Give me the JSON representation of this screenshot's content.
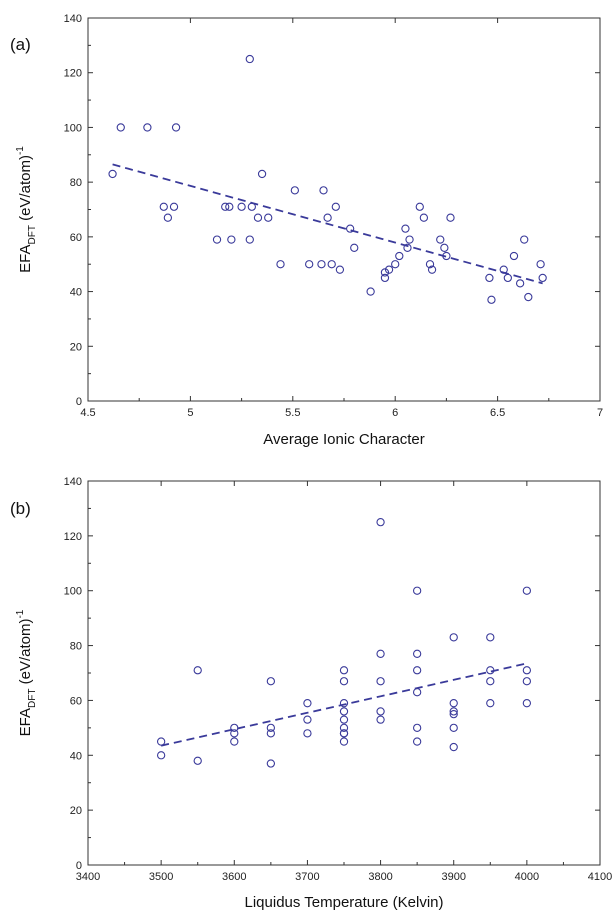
{
  "chart_data": [
    {
      "type": "scatter",
      "panel_label": "(a)",
      "xlabel": "Average Ionic Character",
      "ylabel_main": "EFA",
      "ylabel_sub": "DFT",
      "ylabel_unit": " (eV/atom)",
      "ylabel_sup": "-1",
      "xlim": [
        4.5,
        7
      ],
      "ylim": [
        0,
        140
      ],
      "xtick_labels": [
        "4.5",
        "5",
        "5.5",
        "6",
        "6.5",
        "7"
      ],
      "ytick_labels": [
        "0",
        "20",
        "40",
        "60",
        "80",
        "100",
        "120",
        "140"
      ],
      "series": [
        {
          "marker": "open-circle",
          "color": "#3a3a9a",
          "x": [
            4.62,
            4.66,
            4.79,
            4.87,
            4.89,
            4.92,
            4.93,
            5.13,
            5.17,
            5.19,
            5.2,
            5.25,
            5.29,
            5.29,
            5.3,
            5.33,
            5.35,
            5.38,
            5.44,
            5.51,
            5.58,
            5.64,
            5.65,
            5.67,
            5.69,
            5.71,
            5.73,
            5.78,
            5.8,
            5.88,
            5.95,
            5.95,
            5.97,
            6.0,
            6.02,
            6.05,
            6.06,
            6.07,
            6.12,
            6.14,
            6.17,
            6.18,
            6.22,
            6.24,
            6.25,
            6.27,
            6.46,
            6.47,
            6.53,
            6.55,
            6.58,
            6.61,
            6.63,
            6.65,
            6.71,
            6.72
          ],
          "y": [
            83,
            100,
            100,
            71,
            67,
            71,
            100,
            59,
            71,
            71,
            59,
            71,
            125,
            59,
            71,
            67,
            83,
            67,
            50,
            77,
            50,
            50,
            77,
            67,
            50,
            71,
            48,
            63,
            56,
            40,
            47,
            45,
            48,
            50,
            53,
            63,
            56,
            59,
            71,
            67,
            50,
            48,
            59,
            56,
            53,
            67,
            45,
            37,
            48,
            45,
            53,
            43,
            59,
            38,
            50,
            45
          ]
        }
      ],
      "fit_line": {
        "style": "dashed",
        "x": [
          4.62,
          6.72
        ],
        "y": [
          86.5,
          43
        ]
      }
    },
    {
      "type": "scatter",
      "panel_label": "(b)",
      "xlabel": "Liquidus Temperature (Kelvin)",
      "ylabel_main": "EFA",
      "ylabel_sub": "DFT",
      "ylabel_unit": " (eV/atom)",
      "ylabel_sup": "-1",
      "xlim": [
        3400,
        4100
      ],
      "ylim": [
        0,
        140
      ],
      "xtick_labels": [
        "3400",
        "3500",
        "3600",
        "3700",
        "3800",
        "3900",
        "4000",
        "4100"
      ],
      "ytick_labels": [
        "0",
        "20",
        "40",
        "60",
        "80",
        "100",
        "120",
        "140"
      ],
      "series": [
        {
          "marker": "open-circle",
          "color": "#3a3a9a",
          "x": [
            3500,
            3500,
            3550,
            3550,
            3600,
            3600,
            3600,
            3650,
            3650,
            3650,
            3650,
            3700,
            3700,
            3700,
            3750,
            3750,
            3750,
            3750,
            3750,
            3750,
            3750,
            3750,
            3750,
            3800,
            3800,
            3800,
            3800,
            3800,
            3850,
            3850,
            3850,
            3850,
            3850,
            3850,
            3900,
            3900,
            3900,
            3900,
            3900,
            3900,
            3950,
            3950,
            3950,
            3950,
            4000,
            4000,
            4000,
            4000
          ],
          "y": [
            45,
            40,
            71,
            38,
            50,
            48,
            45,
            67,
            50,
            48,
            37,
            59,
            53,
            48,
            71,
            67,
            59,
            56,
            53,
            50,
            48,
            45,
            48,
            125,
            77,
            67,
            56,
            53,
            100,
            77,
            71,
            63,
            50,
            45,
            83,
            59,
            56,
            50,
            43,
            55,
            83,
            71,
            67,
            59,
            100,
            71,
            67,
            59
          ]
        }
      ],
      "fit_line": {
        "style": "dashed",
        "x": [
          3500,
          4000
        ],
        "y": [
          43.5,
          73.5
        ]
      }
    }
  ]
}
